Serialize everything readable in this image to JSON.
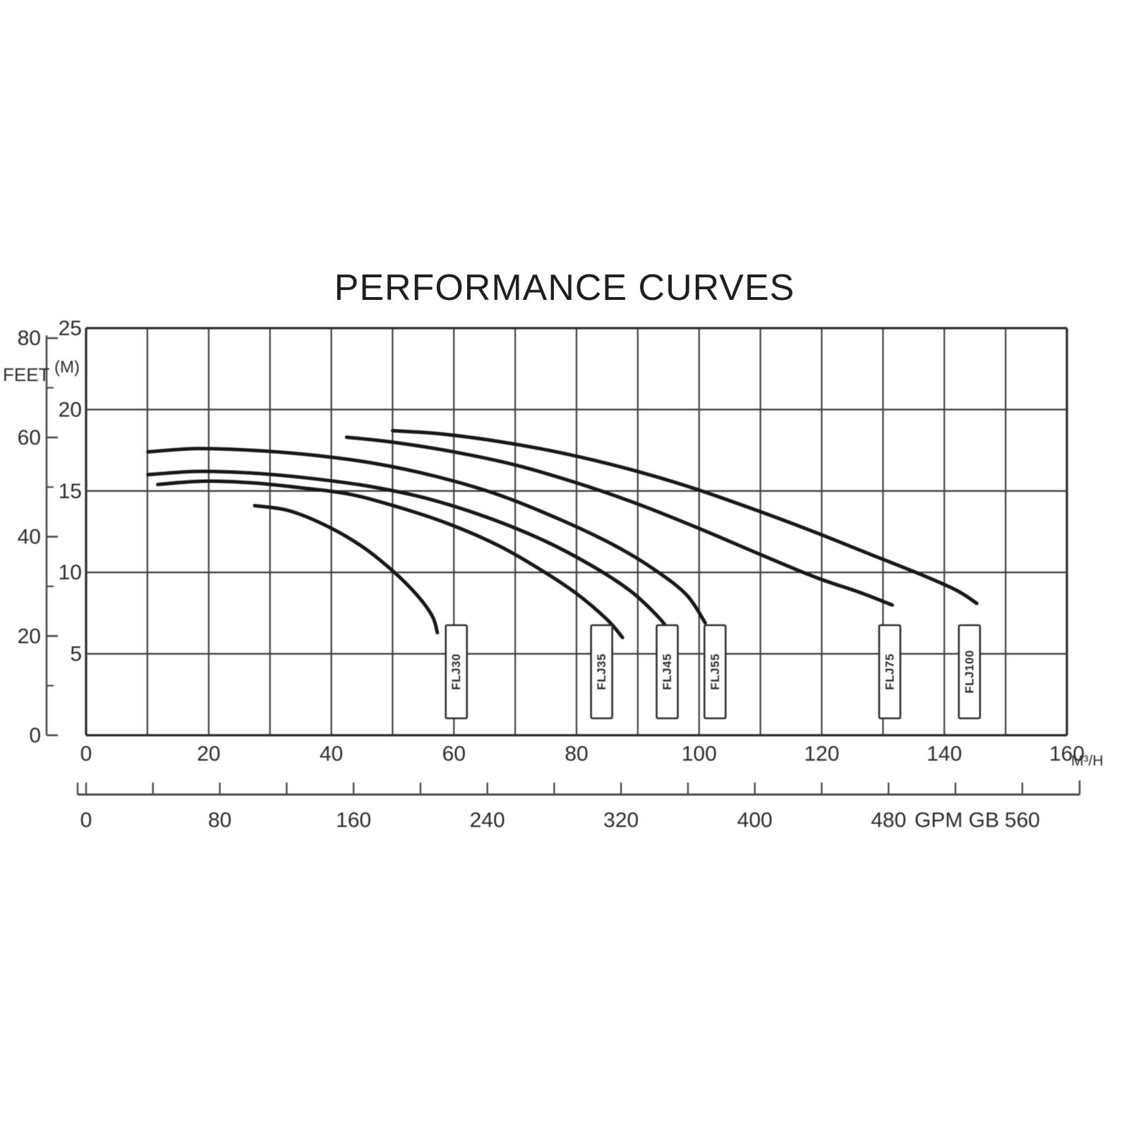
{
  "title": "PERFORMANCE CURVES",
  "chart_data": {
    "type": "line",
    "title": "PERFORMANCE CURVES",
    "grid": {
      "on": true,
      "x_step_m3h": 10,
      "y_step_m": 5
    },
    "y_axis_m": {
      "label": "(M)",
      "ticks": [
        25,
        20,
        15,
        10,
        5
      ],
      "range": [
        0,
        25
      ]
    },
    "y_axis_feet": {
      "label": "FEET",
      "ticks": [
        80,
        60,
        40,
        20,
        0
      ],
      "minor_ticks": [
        70,
        50,
        30,
        10
      ],
      "meters_per_foot": 0.3048
    },
    "x_axis_m3h": {
      "unit": "M³/H",
      "ticks": [
        0,
        20,
        40,
        60,
        80,
        100,
        120,
        140,
        160
      ],
      "range": [
        0,
        160
      ]
    },
    "x_axis_gpm": {
      "unit": "GPM GB",
      "labeled_ticks": [
        0,
        80,
        160,
        240,
        320,
        400,
        480,
        560
      ],
      "tick_step": 40,
      "max_tick": 560,
      "gpm_per_m3h": 3.6667
    },
    "series": [
      {
        "name": "FLJ30",
        "label_x_m3h": 60.4,
        "points": [
          [
            27.5,
            14.1
          ],
          [
            33,
            13.8
          ],
          [
            39,
            12.9
          ],
          [
            45,
            11.6
          ],
          [
            50,
            10.1
          ],
          [
            54,
            8.6
          ],
          [
            56.5,
            7.3
          ],
          [
            57.3,
            6.3
          ]
        ]
      },
      {
        "name": "FLJ35",
        "label_x_m3h": 84.1,
        "points": [
          [
            11.7,
            15.4
          ],
          [
            19,
            15.6
          ],
          [
            27,
            15.5
          ],
          [
            35,
            15.2
          ],
          [
            43,
            14.8
          ],
          [
            51,
            14.0
          ],
          [
            59,
            13.0
          ],
          [
            67,
            11.7
          ],
          [
            74,
            10.2
          ],
          [
            80,
            8.7
          ],
          [
            85,
            7.1
          ],
          [
            87.5,
            6.0
          ]
        ]
      },
      {
        "name": "FLJ45",
        "label_x_m3h": 94.8,
        "points": [
          [
            10.1,
            16.0
          ],
          [
            18,
            16.2
          ],
          [
            27,
            16.1
          ],
          [
            36,
            15.8
          ],
          [
            46,
            15.3
          ],
          [
            56,
            14.5
          ],
          [
            66,
            13.3
          ],
          [
            75,
            11.9
          ],
          [
            83,
            10.3
          ],
          [
            89,
            8.8
          ],
          [
            93.5,
            7.2
          ],
          [
            95.3,
            6.3
          ]
        ]
      },
      {
        "name": "FLJ55",
        "label_x_m3h": 102.6,
        "points": [
          [
            10.1,
            17.4
          ],
          [
            18,
            17.6
          ],
          [
            27,
            17.5
          ],
          [
            37,
            17.2
          ],
          [
            47,
            16.7
          ],
          [
            57,
            15.9
          ],
          [
            67,
            14.8
          ],
          [
            77,
            13.3
          ],
          [
            86,
            11.7
          ],
          [
            93,
            10.1
          ],
          [
            98,
            8.6
          ],
          [
            101,
            6.9
          ]
        ]
      },
      {
        "name": "FLJ75",
        "label_x_m3h": 131.1,
        "points": [
          [
            42.5,
            18.3
          ],
          [
            50,
            18.0
          ],
          [
            60,
            17.4
          ],
          [
            70,
            16.6
          ],
          [
            80,
            15.5
          ],
          [
            90,
            14.2
          ],
          [
            100,
            12.7
          ],
          [
            110,
            11.1
          ],
          [
            119,
            9.7
          ],
          [
            126,
            8.8
          ],
          [
            131.5,
            8.0
          ]
        ]
      },
      {
        "name": "FLJ100",
        "label_x_m3h": 144.1,
        "points": [
          [
            50,
            18.7
          ],
          [
            58,
            18.5
          ],
          [
            68,
            18.0
          ],
          [
            78,
            17.3
          ],
          [
            88,
            16.4
          ],
          [
            98,
            15.3
          ],
          [
            108,
            14.0
          ],
          [
            118,
            12.6
          ],
          [
            128,
            11.1
          ],
          [
            136,
            9.9
          ],
          [
            142,
            8.9
          ],
          [
            145.3,
            8.1
          ]
        ]
      }
    ]
  }
}
